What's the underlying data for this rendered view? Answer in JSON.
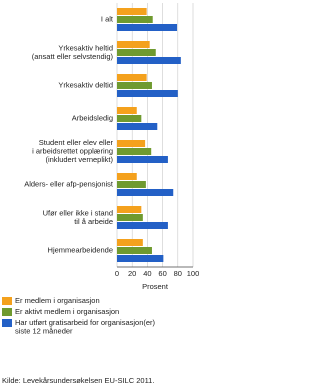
{
  "chart_data": {
    "type": "bar",
    "orientation": "horizontal",
    "categories": [
      "I alt",
      "Yrkesaktiv heltid\n(ansatt eller selvstendig)",
      "Yrkesaktiv deltid",
      "Arbeidsledig",
      "Student eller elev eller\ni arbeidsrettet opplæring\n(inkludert verneplikt)",
      "Alders- eller afp-pensjonist",
      "Ufør eller ikke i stand\ntil å arbeide",
      "Hjemmearbeidende"
    ],
    "series": [
      {
        "name": "Er medlem i organisasjon",
        "color": "#f4a11d",
        "values": [
          39,
          43,
          39,
          26,
          37,
          26,
          32,
          34
        ]
      },
      {
        "name": "Er aktivt medlem i organisasjon",
        "color": "#6f9a2f",
        "values": [
          47,
          51,
          46,
          32,
          45,
          38,
          34,
          46
        ]
      },
      {
        "name": "Har utført gratisarbeid for organisasjon(er)\nsiste 12 måneder",
        "color": "#2360c6",
        "values": [
          79,
          84,
          80,
          53,
          67,
          74,
          67,
          61
        ]
      }
    ],
    "xlim": [
      0,
      100
    ],
    "xticks": [
      0,
      20,
      40,
      60,
      80,
      100
    ],
    "xlabel": "Prosent",
    "grid": true,
    "source": "Kilde: Levekårsundersøkelsen EU-SILC 2011."
  }
}
